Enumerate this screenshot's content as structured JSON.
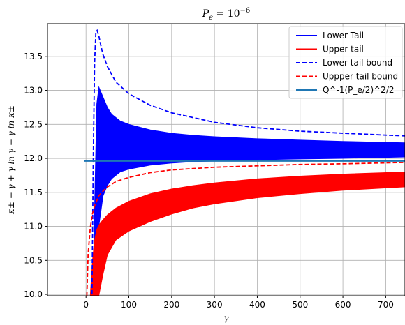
{
  "chart_data": {
    "type": "line",
    "title": "P_e = 10^-6",
    "xlabel": "γ",
    "ylabel": "κ± − γ + γ ln γ − γ ln κ±",
    "xlim": [
      -90,
      745
    ],
    "ylim": [
      9.98,
      13.98
    ],
    "xticks": [
      0,
      100,
      200,
      300,
      400,
      500,
      600,
      700
    ],
    "yticks": [
      10.0,
      10.5,
      11.0,
      11.5,
      12.0,
      12.5,
      13.0,
      13.5
    ],
    "grid": true,
    "legend_position": "top-right",
    "series": [
      {
        "name": "Lower Tail",
        "style": "band",
        "color": "#0000ff",
        "x": [
          18,
          20,
          25,
          30,
          40,
          50,
          60,
          80,
          100,
          150,
          200,
          250,
          300,
          400,
          500,
          600,
          745
        ],
        "upper": [
          10.0,
          11.3,
          12.8,
          13.05,
          12.9,
          12.75,
          12.65,
          12.55,
          12.5,
          12.42,
          12.37,
          12.34,
          12.32,
          12.29,
          12.27,
          12.25,
          12.23
        ],
        "lower": [
          10.0,
          10.0,
          10.4,
          11.0,
          11.45,
          11.6,
          11.7,
          11.8,
          11.84,
          11.9,
          11.93,
          11.95,
          11.96,
          11.98,
          11.99,
          12.0,
          12.02
        ]
      },
      {
        "name": "Upper tail",
        "style": "band",
        "color": "#ff0000",
        "x": [
          10,
          15,
          20,
          25,
          30,
          40,
          50,
          70,
          100,
          150,
          200,
          250,
          300,
          400,
          500,
          600,
          745
        ],
        "upper": [
          10.0,
          10.5,
          10.8,
          10.95,
          11.02,
          11.1,
          11.17,
          11.27,
          11.37,
          11.48,
          11.55,
          11.6,
          11.64,
          11.7,
          11.74,
          11.77,
          11.8
        ],
        "lower": [
          9.98,
          9.98,
          9.98,
          9.98,
          9.98,
          10.3,
          10.58,
          10.8,
          10.93,
          11.07,
          11.18,
          11.27,
          11.33,
          11.42,
          11.48,
          11.53,
          11.58
        ]
      },
      {
        "name": "Lower tail bound",
        "style": "dashed",
        "color": "#0000ff",
        "x": [
          14,
          17,
          20,
          23,
          26,
          30,
          35,
          40,
          50,
          70,
          100,
          150,
          200,
          300,
          400,
          500,
          600,
          745
        ],
        "y": [
          10.0,
          12.0,
          13.4,
          13.85,
          13.88,
          13.8,
          13.65,
          13.52,
          13.35,
          13.12,
          12.95,
          12.78,
          12.67,
          12.53,
          12.45,
          12.4,
          12.37,
          12.33
        ]
      },
      {
        "name": "Uppper tail bound",
        "style": "dashed",
        "color": "#ff0000",
        "x": [
          2,
          5,
          10,
          15,
          20,
          30,
          40,
          50,
          70,
          100,
          150,
          200,
          300,
          400,
          500,
          600,
          745
        ],
        "y": [
          9.98,
          10.6,
          10.98,
          11.18,
          11.3,
          11.45,
          11.52,
          11.58,
          11.66,
          11.72,
          11.79,
          11.83,
          11.87,
          11.89,
          11.91,
          11.92,
          11.94
        ]
      },
      {
        "name": "Q^-1(P_e/2)^2/2",
        "style": "solid",
        "color": "#1f77b4",
        "x": [
          -5,
          745
        ],
        "y": [
          11.96,
          11.96
        ]
      }
    ]
  }
}
